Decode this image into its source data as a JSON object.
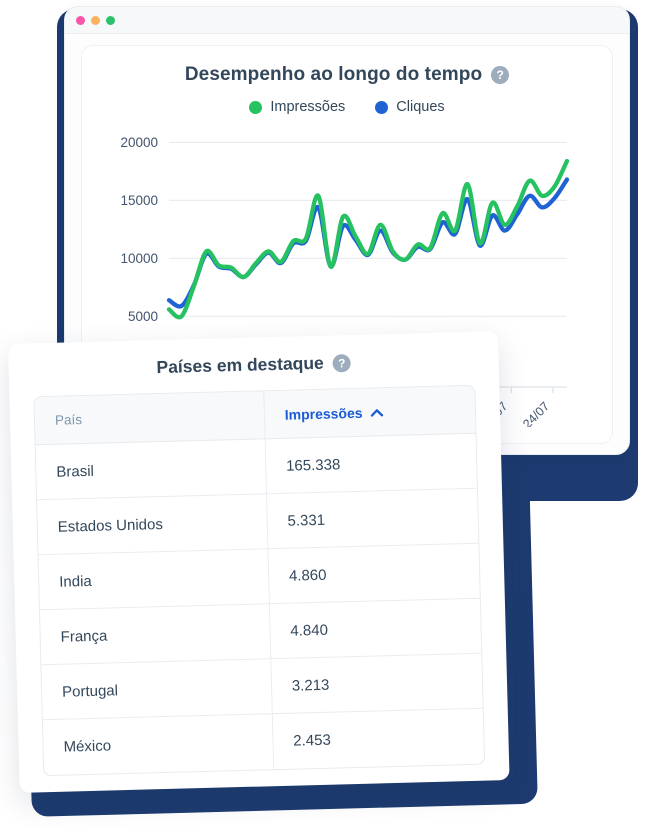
{
  "colors": {
    "navy": "#1d3b70",
    "green": "#26c161",
    "blue": "#1e62d4",
    "title_text": "#33475b",
    "axis_text": "#42546e",
    "grid_line": "#e9edf1",
    "axis_line": "#dfe3e8",
    "sort_blue": "#1b5cd6"
  },
  "window": {
    "dots": [
      {
        "name": "window-dot-pink",
        "color": "#f855a8"
      },
      {
        "name": "window-dot-orange",
        "color": "#f9b360"
      },
      {
        "name": "window-dot-green",
        "color": "#2ec06c"
      }
    ]
  },
  "chart_card": {
    "title": "Desempenho ao longo do tempo",
    "help_icon": "?",
    "legend": [
      {
        "label": "Impressões",
        "color": "#26c161"
      },
      {
        "label": "Cliques",
        "color": "#1e62d4"
      }
    ]
  },
  "chart_data": {
    "type": "line",
    "title": "Desempenho ao longo do tempo",
    "ylim": [
      2500,
      21500
    ],
    "yticks": [
      20000,
      15000,
      10000,
      5000
    ],
    "grid": true,
    "legend_position": "top",
    "xticks": [
      {
        "label": "17/07",
        "pos": 0.86
      },
      {
        "label": "24/07",
        "pos": 0.965
      }
    ],
    "series": [
      {
        "name": "Cliques",
        "color": "#1e62d4",
        "values": [
          6400,
          5900,
          7700,
          10400,
          9300,
          9100,
          8400,
          9500,
          10500,
          9600,
          11300,
          11500,
          14400,
          9300,
          12800,
          11600,
          10300,
          12400,
          10500,
          9900,
          11000,
          10800,
          13100,
          12100,
          15100,
          11100,
          13700,
          12400,
          13800,
          15400,
          14400,
          15200,
          16800
        ]
      },
      {
        "name": "Impressões",
        "color": "#26c161",
        "values": [
          5600,
          5000,
          7600,
          10600,
          9400,
          9200,
          8400,
          9600,
          10600,
          9700,
          11500,
          11700,
          15400,
          9300,
          13600,
          11900,
          10400,
          12900,
          10600,
          9900,
          11200,
          10900,
          13900,
          12400,
          16400,
          11300,
          14800,
          12900,
          14500,
          16700,
          15400,
          16200,
          18400
        ]
      }
    ]
  },
  "countries_card": {
    "title": "Países em destaque",
    "help_icon": "?",
    "table": {
      "columns": {
        "country": "País",
        "impressions": "Impressões"
      },
      "sort": {
        "column": "Impressões",
        "direction": "asc"
      },
      "rows": [
        {
          "country": "Brasil",
          "impressions": "165.338"
        },
        {
          "country": "Estados Unidos",
          "impressions": "5.331"
        },
        {
          "country": "India",
          "impressions": "4.860"
        },
        {
          "country": "França",
          "impressions": "4.840"
        },
        {
          "country": "Portugal",
          "impressions": "3.213"
        },
        {
          "country": "México",
          "impressions": "2.453"
        }
      ]
    }
  }
}
